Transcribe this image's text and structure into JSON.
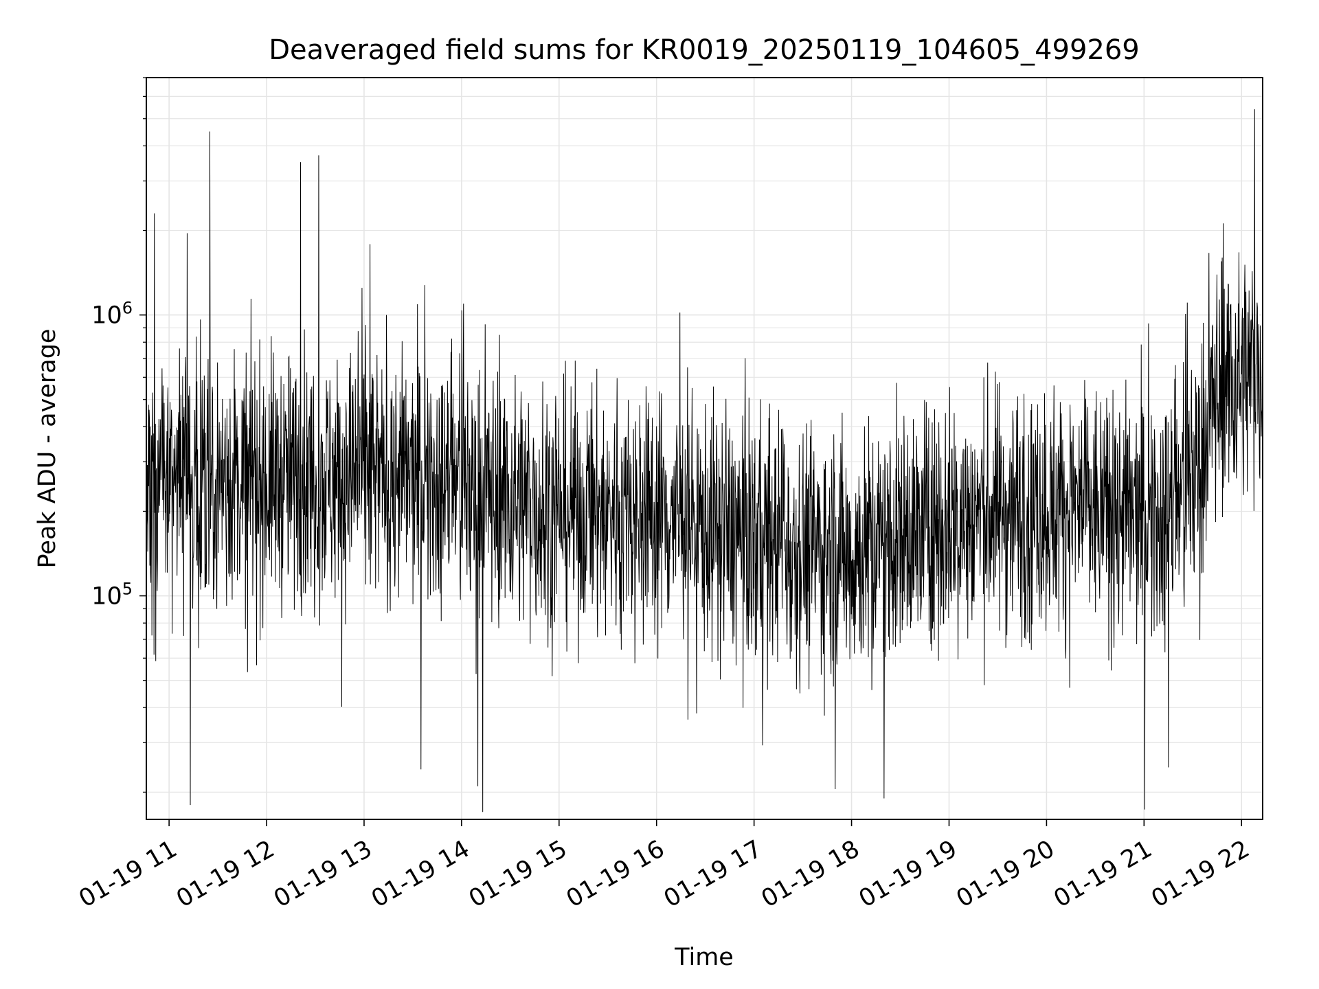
{
  "chart_data": {
    "type": "line",
    "title": "Deaveraged field sums for KR0019_20250119_104605_499269",
    "xlabel": "Time",
    "ylabel": "Peak ADU - average",
    "xlim": [
      "2025-01-19 10:46",
      "2025-01-19 22:13"
    ],
    "ylim": [
      16000,
      7000000
    ],
    "yscale": "log",
    "grid": "major and minor, light gray",
    "line_color": "#000000",
    "x_tick_labels": [
      "01-19 11",
      "01-19 12",
      "01-19 13",
      "01-19 14",
      "01-19 15",
      "01-19 16",
      "01-19 17",
      "01-19 18",
      "01-19 19",
      "01-19 20",
      "01-19 21",
      "01-19 22"
    ],
    "y_tick_labels": [
      {
        "value": 100000,
        "base": "10",
        "exp": "5"
      },
      {
        "value": 1000000,
        "base": "10",
        "exp": "6"
      }
    ],
    "trend": [
      {
        "x": "2025-01-19 10:46",
        "y": 250000
      },
      {
        "x": "2025-01-19 11:30",
        "y": 260000
      },
      {
        "x": "2025-01-19 12:30",
        "y": 260000
      },
      {
        "x": "2025-01-19 13:00",
        "y": 265000
      },
      {
        "x": "2025-01-19 13:30",
        "y": 260000
      },
      {
        "x": "2025-01-19 14:00",
        "y": 245000
      },
      {
        "x": "2025-01-19 14:30",
        "y": 220000
      },
      {
        "x": "2025-01-19 15:00",
        "y": 200000
      },
      {
        "x": "2025-01-19 15:30",
        "y": 195000
      },
      {
        "x": "2025-01-19 16:00",
        "y": 200000
      },
      {
        "x": "2025-01-19 16:30",
        "y": 175000
      },
      {
        "x": "2025-01-19 17:00",
        "y": 160000
      },
      {
        "x": "2025-01-19 17:30",
        "y": 150000
      },
      {
        "x": "2025-01-19 18:00",
        "y": 140000
      },
      {
        "x": "2025-01-19 18:30",
        "y": 160000
      },
      {
        "x": "2025-01-19 19:00",
        "y": 185000
      },
      {
        "x": "2025-01-19 19:30",
        "y": 200000
      },
      {
        "x": "2025-01-19 20:00",
        "y": 205000
      },
      {
        "x": "2025-01-19 20:30",
        "y": 200000
      },
      {
        "x": "2025-01-19 21:00",
        "y": 185000
      },
      {
        "x": "2025-01-19 21:20",
        "y": 200000
      },
      {
        "x": "2025-01-19 21:35",
        "y": 320000
      },
      {
        "x": "2025-01-19 21:45",
        "y": 550000
      },
      {
        "x": "2025-01-19 22:13",
        "y": 650000
      }
    ],
    "spikes_high": [
      {
        "x": "2025-01-19 10:51",
        "y": 2300000
      },
      {
        "x": "2025-01-19 11:25",
        "y": 4500000
      },
      {
        "x": "2025-01-19 12:21",
        "y": 3500000
      },
      {
        "x": "2025-01-19 12:32",
        "y": 3700000
      },
      {
        "x": "2025-01-19 21:48",
        "y": 1600000
      },
      {
        "x": "2025-01-19 22:08",
        "y": 5400000
      }
    ],
    "spikes_low": [
      {
        "x": "2025-01-19 11:13",
        "y": 18000
      },
      {
        "x": "2025-01-19 14:10",
        "y": 21000
      },
      {
        "x": "2025-01-19 14:13",
        "y": 17000
      },
      {
        "x": "2025-01-19 17:50",
        "y": 20500
      },
      {
        "x": "2025-01-19 18:20",
        "y": 19000
      },
      {
        "x": "2025-01-19 21:15",
        "y": 24500
      }
    ]
  }
}
